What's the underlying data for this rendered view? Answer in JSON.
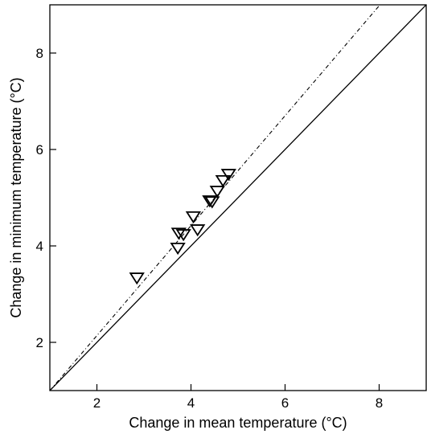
{
  "chart_data": {
    "type": "scatter",
    "title": "",
    "xlabel": "Change in mean temperature (°C)",
    "ylabel": "Change in minimum temperature (°C)",
    "xlim": [
      1,
      9
    ],
    "ylim": [
      1,
      9
    ],
    "xticks": [
      2,
      4,
      6,
      8
    ],
    "yticks": [
      2,
      4,
      6,
      8
    ],
    "grid": false,
    "marker": "open-down-triangle",
    "series": [
      {
        "x": [
          2.85,
          3.72,
          3.74,
          3.84,
          4.05,
          4.14,
          4.4,
          4.45,
          4.56,
          4.68,
          4.8
        ],
        "y": [
          3.35,
          3.97,
          4.28,
          4.25,
          4.62,
          4.35,
          4.95,
          4.93,
          5.15,
          5.37,
          5.5
        ]
      }
    ],
    "lines": [
      {
        "kind": "identity",
        "style": "solid",
        "slope": 1,
        "intercept": 0
      },
      {
        "kind": "fit",
        "style": "dashdot",
        "slope": 1.14,
        "intercept": -0.14
      }
    ]
  }
}
